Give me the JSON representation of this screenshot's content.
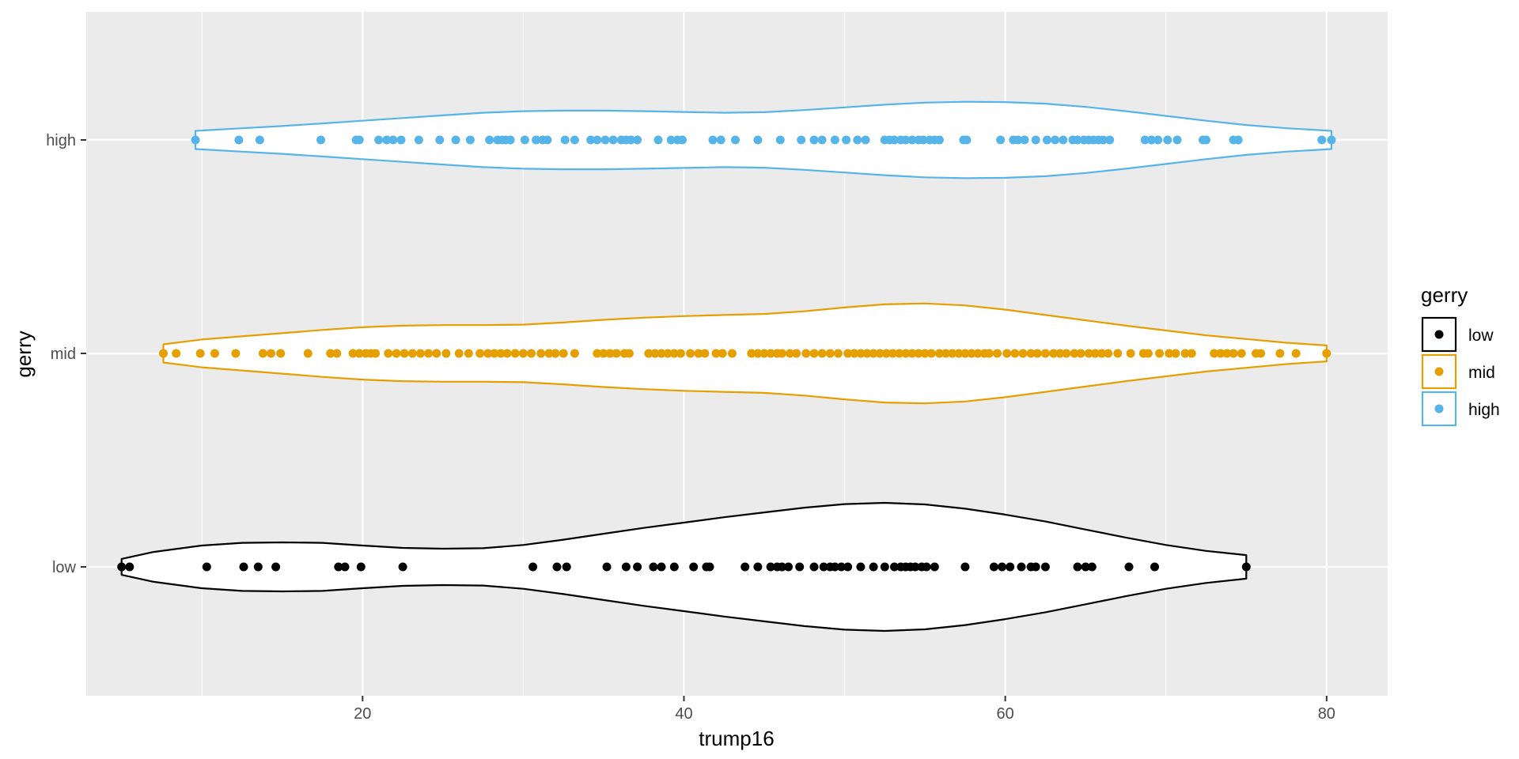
{
  "chart_data": {
    "type": "scatter",
    "subtype": "violin with jittered-free strip points",
    "xlabel": "trump16",
    "ylabel": "gerry",
    "xlim": [
      2.8,
      83.8
    ],
    "x_ticks": [
      20,
      40,
      60,
      80
    ],
    "categories": [
      "low",
      "mid",
      "high"
    ],
    "grid": true,
    "legend": {
      "title": "gerry",
      "position": "right",
      "entries": [
        "low",
        "mid",
        "high"
      ]
    },
    "series": [
      {
        "name": "low",
        "color": "#000000",
        "density": [
          [
            5.0,
            0.075
          ],
          [
            7,
            0.14
          ],
          [
            10,
            0.2
          ],
          [
            12.5,
            0.225
          ],
          [
            15,
            0.23
          ],
          [
            17.5,
            0.225
          ],
          [
            20,
            0.2
          ],
          [
            22.5,
            0.178
          ],
          [
            25,
            0.17
          ],
          [
            27.5,
            0.175
          ],
          [
            30,
            0.205
          ],
          [
            32.5,
            0.255
          ],
          [
            35,
            0.31
          ],
          [
            37.5,
            0.365
          ],
          [
            40,
            0.415
          ],
          [
            42.5,
            0.465
          ],
          [
            45,
            0.51
          ],
          [
            47.5,
            0.555
          ],
          [
            50,
            0.588
          ],
          [
            52.5,
            0.6
          ],
          [
            55,
            0.585
          ],
          [
            57.5,
            0.545
          ],
          [
            60,
            0.49
          ],
          [
            62.5,
            0.425
          ],
          [
            65,
            0.35
          ],
          [
            67.5,
            0.275
          ],
          [
            70,
            0.205
          ],
          [
            72.5,
            0.15
          ],
          [
            75.0,
            0.11
          ]
        ],
        "points": [
          5.0,
          5.5,
          10.3,
          12.6,
          13.5,
          14.6,
          18.5,
          18.9,
          19.9,
          22.5,
          30.6,
          32.1,
          32.7,
          35.2,
          36.4,
          37.1,
          38.1,
          38.6,
          39.4,
          40.6,
          41.4,
          41.6,
          43.8,
          44.6,
          45.4,
          45.8,
          46.1,
          46.5,
          47.2,
          48.1,
          48.7,
          49.1,
          49.4,
          49.8,
          50.2,
          51.0,
          51.8,
          52.5,
          53.1,
          53.5,
          53.8,
          54.1,
          54.4,
          54.8,
          55.1,
          55.6,
          57.5,
          59.3,
          59.8,
          60.3,
          61.0,
          61.6,
          61.9,
          62.5,
          64.5,
          65.0,
          65.4,
          67.7,
          69.3,
          75.0
        ]
      },
      {
        "name": "mid",
        "color": "#E69F00",
        "density": [
          [
            7.6,
            0.085
          ],
          [
            10,
            0.13
          ],
          [
            12.5,
            0.16
          ],
          [
            15,
            0.19
          ],
          [
            17.5,
            0.22
          ],
          [
            20,
            0.245
          ],
          [
            22.5,
            0.26
          ],
          [
            25,
            0.265
          ],
          [
            27.5,
            0.265
          ],
          [
            30,
            0.27
          ],
          [
            32.5,
            0.29
          ],
          [
            35,
            0.315
          ],
          [
            37.5,
            0.335
          ],
          [
            40,
            0.35
          ],
          [
            42.5,
            0.36
          ],
          [
            45,
            0.37
          ],
          [
            47.5,
            0.395
          ],
          [
            50,
            0.43
          ],
          [
            52.5,
            0.46
          ],
          [
            55,
            0.468
          ],
          [
            57.5,
            0.45
          ],
          [
            60,
            0.41
          ],
          [
            62.5,
            0.36
          ],
          [
            65,
            0.31
          ],
          [
            67.5,
            0.26
          ],
          [
            70,
            0.215
          ],
          [
            72.5,
            0.17
          ],
          [
            75,
            0.135
          ],
          [
            77.5,
            0.1
          ],
          [
            80.0,
            0.075
          ]
        ],
        "points": [
          7.6,
          8.4,
          9.9,
          10.8,
          12.1,
          13.8,
          14.3,
          14.9,
          16.6,
          18.0,
          18.4,
          19.4,
          19.8,
          20.2,
          20.5,
          20.8,
          21.6,
          22.1,
          22.6,
          23.1,
          23.6,
          24.1,
          24.6,
          25.2,
          26.0,
          26.6,
          27.3,
          27.8,
          28.2,
          28.6,
          29.0,
          29.5,
          30.0,
          30.5,
          31.1,
          31.6,
          32.0,
          32.5,
          33.2,
          34.6,
          35.0,
          35.4,
          35.8,
          36.3,
          36.6,
          37.8,
          38.2,
          38.6,
          39.0,
          39.4,
          39.8,
          40.4,
          40.9,
          41.3,
          42.0,
          42.4,
          43.0,
          44.2,
          44.6,
          45.0,
          45.4,
          45.8,
          46.1,
          46.6,
          47.0,
          47.6,
          48.1,
          48.6,
          49.1,
          49.6,
          50.2,
          50.6,
          51.0,
          51.4,
          51.8,
          52.2,
          52.6,
          53.0,
          53.4,
          53.8,
          54.2,
          54.6,
          55.0,
          55.4,
          55.9,
          56.3,
          56.7,
          57.1,
          57.5,
          57.9,
          58.3,
          58.7,
          59.0,
          59.5,
          60.1,
          60.6,
          61.1,
          61.6,
          62.0,
          62.5,
          63.0,
          63.4,
          63.8,
          64.3,
          64.7,
          65.2,
          65.6,
          66.0,
          66.4,
          67.0,
          67.8,
          68.6,
          68.9,
          69.6,
          70.2,
          70.6,
          71.2,
          71.6,
          73.0,
          73.4,
          73.8,
          74.2,
          74.7,
          75.6,
          75.9,
          77.1,
          78.1,
          80.0
        ]
      },
      {
        "name": "high",
        "color": "#56B4E9",
        "density": [
          [
            9.6,
            0.085
          ],
          [
            12.5,
            0.11
          ],
          [
            15,
            0.13
          ],
          [
            17.5,
            0.155
          ],
          [
            20,
            0.18
          ],
          [
            22.5,
            0.205
          ],
          [
            25,
            0.23
          ],
          [
            27.5,
            0.255
          ],
          [
            30,
            0.27
          ],
          [
            32.5,
            0.275
          ],
          [
            35,
            0.275
          ],
          [
            37.5,
            0.27
          ],
          [
            40,
            0.262
          ],
          [
            42.5,
            0.255
          ],
          [
            45,
            0.26
          ],
          [
            47.5,
            0.28
          ],
          [
            50,
            0.305
          ],
          [
            52.5,
            0.33
          ],
          [
            55,
            0.35
          ],
          [
            57.5,
            0.358
          ],
          [
            60,
            0.355
          ],
          [
            62.5,
            0.34
          ],
          [
            65,
            0.31
          ],
          [
            67.5,
            0.27
          ],
          [
            70,
            0.225
          ],
          [
            72.5,
            0.18
          ],
          [
            75,
            0.14
          ],
          [
            77.5,
            0.11
          ],
          [
            80.3,
            0.085
          ]
        ],
        "points": [
          9.6,
          12.3,
          13.6,
          17.4,
          19.6,
          19.8,
          21.0,
          21.5,
          21.9,
          22.4,
          23.5,
          24.8,
          25.8,
          26.7,
          27.9,
          28.4,
          28.7,
          28.9,
          29.2,
          30.1,
          30.8,
          31.2,
          31.5,
          32.6,
          33.2,
          34.2,
          34.6,
          35.1,
          35.6,
          36.1,
          36.4,
          36.7,
          37.1,
          38.4,
          39.2,
          39.6,
          39.9,
          41.8,
          42.3,
          43.2,
          44.6,
          46.0,
          47.3,
          48.1,
          48.6,
          49.4,
          50.1,
          50.8,
          51.3,
          52.5,
          52.8,
          53.1,
          53.5,
          53.8,
          54.2,
          54.6,
          54.9,
          55.3,
          55.6,
          55.9,
          57.4,
          57.6,
          59.7,
          60.5,
          60.8,
          61.2,
          61.9,
          62.6,
          63.1,
          63.6,
          64.2,
          64.5,
          64.9,
          65.2,
          65.5,
          65.8,
          66.1,
          66.5,
          68.7,
          69.1,
          69.5,
          70.1,
          70.7,
          72.3,
          72.5,
          74.2,
          74.5,
          79.7,
          80.3
        ]
      }
    ]
  }
}
